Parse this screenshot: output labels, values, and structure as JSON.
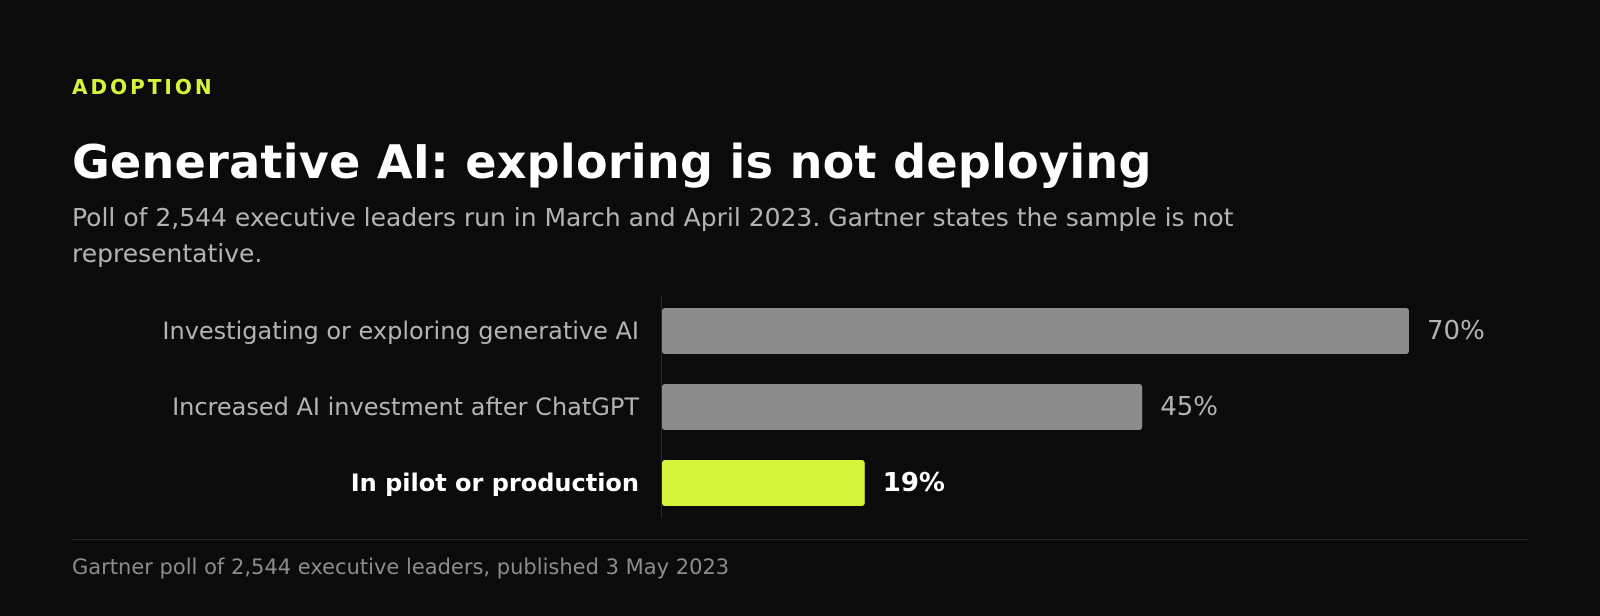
{
  "header": {
    "eyebrow": "ADOPTION",
    "title": "Generative AI: exploring is not deploying",
    "subtitle": "Poll of 2,544 executive leaders run in March and April 2023. Gartner states the sample is not representative."
  },
  "colors": {
    "accent": "#d4f53c",
    "bar": "#8c8c8c",
    "background": "#0b0b0b"
  },
  "chart_data": {
    "type": "bar",
    "orientation": "horizontal",
    "categories": [
      "Investigating or exploring generative AI",
      "Increased AI investment after ChatGPT",
      "In pilot or production"
    ],
    "values": [
      70,
      45,
      19
    ],
    "value_labels": [
      "70%",
      "45%",
      "19%"
    ],
    "highlighted": [
      false,
      false,
      true
    ],
    "xlim": [
      0,
      70
    ],
    "unit": "%",
    "grid": false
  },
  "footer": {
    "source": "Gartner poll of 2,544 executive leaders, published 3 May 2023"
  }
}
